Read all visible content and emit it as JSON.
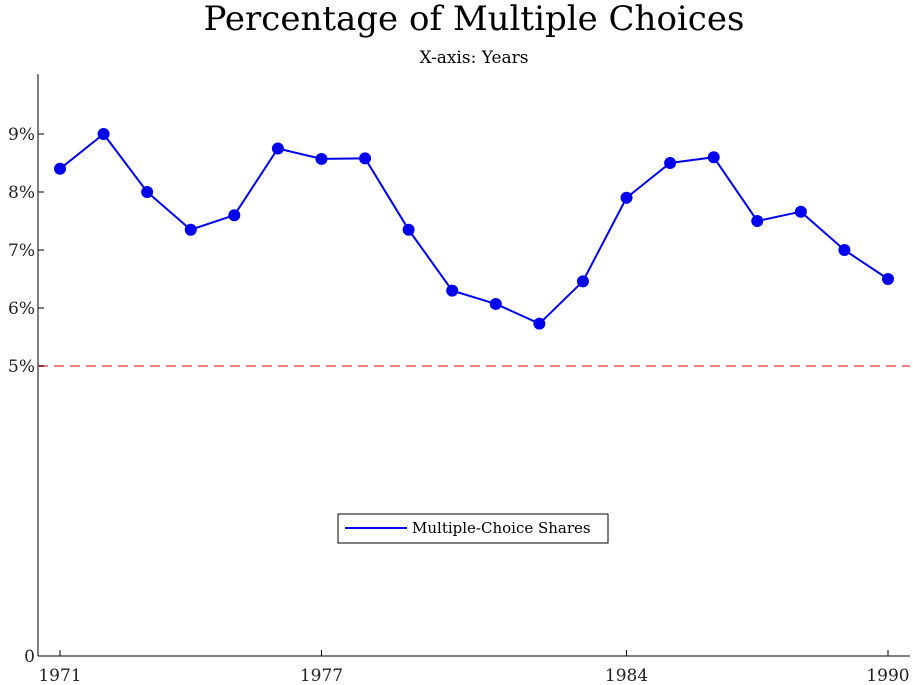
{
  "chart_data": {
    "type": "line",
    "title": "Percentage of Multiple Choices",
    "subtitle": "X-axis: Years",
    "xlabel": "",
    "ylabel": "",
    "xlim": [
      1970.5,
      1990.5
    ],
    "ylim": [
      0,
      10
    ],
    "x_ticks": [
      1971,
      1977,
      1984,
      1990
    ],
    "y_ticks": [
      {
        "value": 0,
        "label": "0"
      },
      {
        "value": 5,
        "label": "5%"
      },
      {
        "value": 6,
        "label": "6%"
      },
      {
        "value": 7,
        "label": "7%"
      },
      {
        "value": 8,
        "label": "8%"
      },
      {
        "value": 9,
        "label": "9%"
      }
    ],
    "grid": false,
    "reference_line": {
      "value": 5,
      "color": "#f08080",
      "style": "dashed"
    },
    "legend_placement": "center-bottom",
    "series": [
      {
        "name": "Multiple-Choice Shares",
        "color": "#0000ee",
        "x": [
          1971,
          1972,
          1973,
          1974,
          1975,
          1976,
          1977,
          1978,
          1979,
          1980,
          1981,
          1982,
          1983,
          1984,
          1985,
          1986,
          1987,
          1988,
          1989,
          1990
        ],
        "values": [
          8.4,
          9.0,
          8.0,
          7.35,
          7.6,
          8.75,
          8.57,
          8.58,
          7.35,
          6.3,
          6.07,
          5.73,
          6.46,
          7.9,
          8.5,
          8.6,
          7.5,
          7.66,
          7.0,
          6.5
        ]
      }
    ]
  }
}
